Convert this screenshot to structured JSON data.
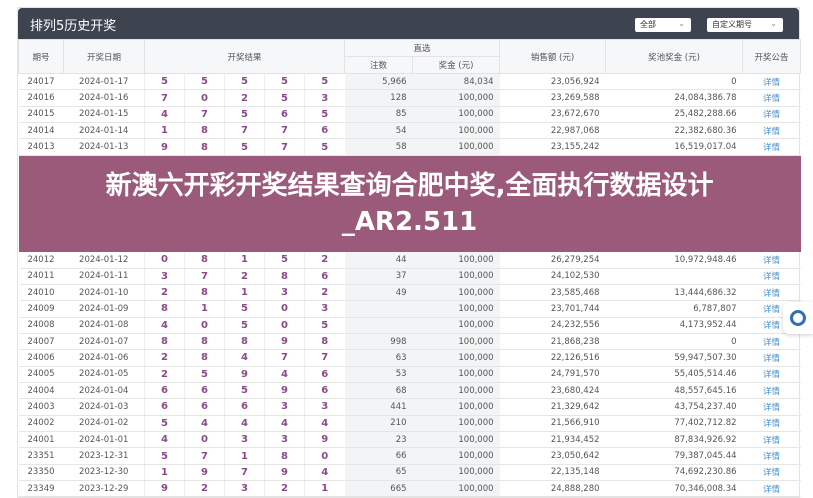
{
  "header": {
    "title": "排列5历史开奖",
    "filter1": "全部",
    "filter2": "自定义期号"
  },
  "columns": {
    "issue": "期号",
    "date": "开奖日期",
    "result": "开奖结果",
    "direct": "直选",
    "count": "注数",
    "prize": "奖金 (元)",
    "sales": "销售额 (元)",
    "pool": "奖池奖金 (元)",
    "notice": "开奖公告"
  },
  "rows": [
    {
      "issue": "24017",
      "date": "2024-01-17",
      "n": [
        "5",
        "5",
        "5",
        "5",
        "5"
      ],
      "count": "5,966",
      "prize": "84,034",
      "sales": "23,056,924",
      "pool": "0",
      "link": "详情"
    },
    {
      "issue": "24016",
      "date": "2024-01-16",
      "n": [
        "7",
        "0",
        "2",
        "5",
        "3"
      ],
      "count": "128",
      "prize": "100,000",
      "sales": "23,269,588",
      "pool": "24,084,386.78",
      "link": "详情"
    },
    {
      "issue": "24015",
      "date": "2024-01-15",
      "n": [
        "4",
        "7",
        "5",
        "6",
        "5"
      ],
      "count": "85",
      "prize": "100,000",
      "sales": "23,672,670",
      "pool": "25,482,288.66",
      "link": "详情"
    },
    {
      "issue": "24014",
      "date": "2024-01-14",
      "n": [
        "1",
        "8",
        "7",
        "7",
        "6"
      ],
      "count": "54",
      "prize": "100,000",
      "sales": "22,987,068",
      "pool": "22,382,680.36",
      "link": "详情"
    },
    {
      "issue": "24013",
      "date": "2024-01-13",
      "n": [
        "9",
        "8",
        "5",
        "7",
        "5"
      ],
      "count": "58",
      "prize": "100,000",
      "sales": "23,155,242",
      "pool": "16,519,017.04",
      "link": "详情"
    },
    {
      "issue": "24012",
      "date": "2024-01-12",
      "n": [
        "0",
        "8",
        "1",
        "5",
        "2"
      ],
      "count": "44",
      "prize": "100,000",
      "sales": "26,279,254",
      "pool": "10,972,948.46",
      "link": "详情"
    },
    {
      "issue": "24011",
      "date": "2024-01-11",
      "n": [
        "3",
        "7",
        "2",
        "8",
        "6"
      ],
      "count": "37",
      "prize": "100,000",
      "sales": "24,102,530",
      "pool": "",
      "link": "详情"
    },
    {
      "issue": "24010",
      "date": "2024-01-10",
      "n": [
        "2",
        "8",
        "1",
        "3",
        "2"
      ],
      "count": "49",
      "prize": "100,000",
      "sales": "23,585,468",
      "pool": "13,444,686.32",
      "link": "详情"
    },
    {
      "issue": "24009",
      "date": "2024-01-09",
      "n": [
        "8",
        "1",
        "5",
        "0",
        "3"
      ],
      "count": "",
      "prize": "100,000",
      "sales": "23,701,744",
      "pool": "6,787,807",
      "link": "详情"
    },
    {
      "issue": "24008",
      "date": "2024-01-08",
      "n": [
        "4",
        "0",
        "5",
        "0",
        "5"
      ],
      "count": "",
      "prize": "100,000",
      "sales": "24,232,556",
      "pool": "4,173,952.44",
      "link": "详情"
    },
    {
      "issue": "24007",
      "date": "2024-01-07",
      "n": [
        "8",
        "8",
        "8",
        "9",
        "8"
      ],
      "count": "998",
      "prize": "100,000",
      "sales": "21,868,238",
      "pool": "0",
      "link": "详情"
    },
    {
      "issue": "24006",
      "date": "2024-01-06",
      "n": [
        "2",
        "8",
        "4",
        "7",
        "7"
      ],
      "count": "63",
      "prize": "100,000",
      "sales": "22,126,516",
      "pool": "59,947,507.30",
      "link": "详情"
    },
    {
      "issue": "24005",
      "date": "2024-01-05",
      "n": [
        "2",
        "5",
        "9",
        "4",
        "6"
      ],
      "count": "53",
      "prize": "100,000",
      "sales": "24,791,570",
      "pool": "55,405,514.46",
      "link": "详情"
    },
    {
      "issue": "24004",
      "date": "2024-01-04",
      "n": [
        "6",
        "6",
        "5",
        "9",
        "6"
      ],
      "count": "68",
      "prize": "100,000",
      "sales": "23,680,424",
      "pool": "48,557,645.16",
      "link": "详情"
    },
    {
      "issue": "24003",
      "date": "2024-01-03",
      "n": [
        "6",
        "6",
        "6",
        "3",
        "3"
      ],
      "count": "441",
      "prize": "100,000",
      "sales": "21,329,642",
      "pool": "43,754,237.40",
      "link": "详情"
    },
    {
      "issue": "24002",
      "date": "2024-01-02",
      "n": [
        "5",
        "4",
        "4",
        "4",
        "4"
      ],
      "count": "210",
      "prize": "100,000",
      "sales": "21,566,910",
      "pool": "77,402,712.82",
      "link": "详情"
    },
    {
      "issue": "24001",
      "date": "2024-01-01",
      "n": [
        "4",
        "0",
        "3",
        "3",
        "9"
      ],
      "count": "23",
      "prize": "100,000",
      "sales": "21,934,452",
      "pool": "87,834,926.92",
      "link": "详情"
    },
    {
      "issue": "23351",
      "date": "2023-12-31",
      "n": [
        "5",
        "7",
        "1",
        "8",
        "0"
      ],
      "count": "66",
      "prize": "100,000",
      "sales": "23,050,642",
      "pool": "79,387,045.44",
      "link": "详情"
    },
    {
      "issue": "23350",
      "date": "2023-12-30",
      "n": [
        "1",
        "9",
        "7",
        "9",
        "4"
      ],
      "count": "65",
      "prize": "100,000",
      "sales": "22,135,148",
      "pool": "74,692,230.86",
      "link": "详情"
    },
    {
      "issue": "23349",
      "date": "2023-12-29",
      "n": [
        "9",
        "2",
        "3",
        "2",
        "1"
      ],
      "count": "665",
      "prize": "100,000",
      "sales": "24,888,280",
      "pool": "70,346,008.34",
      "link": "详情"
    }
  ],
  "banner": {
    "line1": "新澳六开彩开奖结果查询合肥中奖,全面执行数据设计",
    "line2": "_AR2.511"
  },
  "colors": {
    "header": "#3d4450",
    "number": "#8a4a8a",
    "link": "#4a8fd0",
    "banner": "#924c6e"
  }
}
